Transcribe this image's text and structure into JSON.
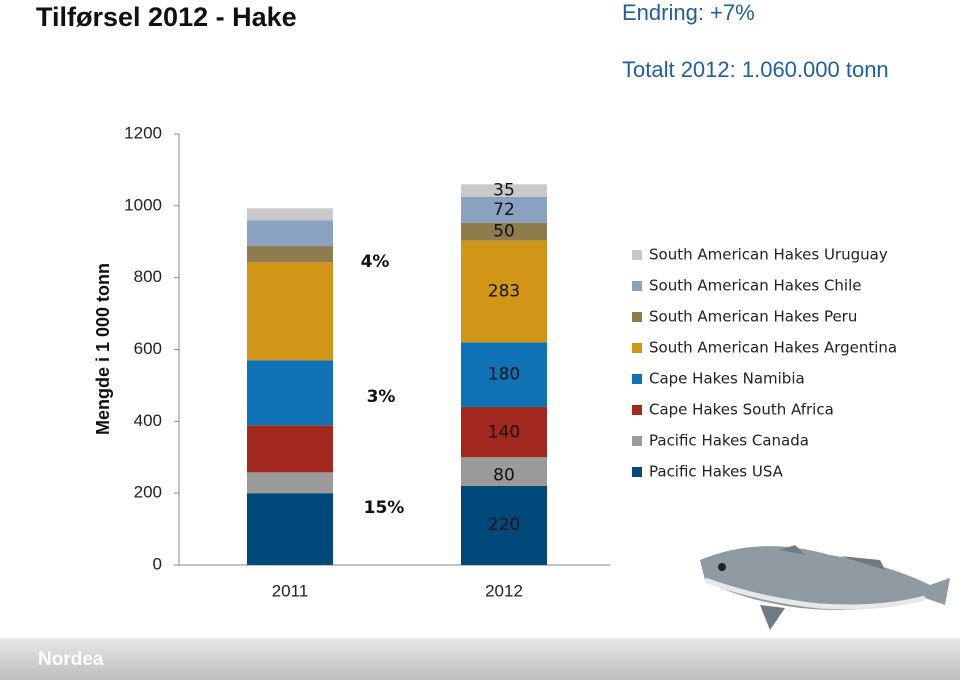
{
  "chart_data": {
    "type": "stacked_bar",
    "title": "Tilførsel 2012 - Hake",
    "subtitle": "Endring: +7%",
    "total_note": "Totalt 2012: 1.060.000 tonn",
    "y_label": "Mengde i 1 000 tonn",
    "categories": [
      "2011",
      "2012"
    ],
    "series": [
      {
        "name": "Pacific Hakes USA",
        "color": "#00497a",
        "values": [
          200,
          220
        ],
        "value_labels": [
          null,
          "220"
        ]
      },
      {
        "name": "Pacific Hakes Canada",
        "color": "#9a9a9a",
        "values": [
          58,
          80
        ],
        "value_labels": [
          null,
          "80"
        ]
      },
      {
        "name": "Cape Hakes South Africa",
        "color": "#a3291f",
        "values": [
          131,
          140
        ],
        "value_labels": [
          null,
          "140"
        ]
      },
      {
        "name": "Cape Hakes Namibia",
        "color": "#0f72b4",
        "values": [
          181,
          180
        ],
        "value_labels": [
          null,
          "180"
        ]
      },
      {
        "name": "South American Hakes Argentina",
        "color": "#d19617",
        "values": [
          273,
          283
        ],
        "value_labels": [
          null,
          "283"
        ]
      },
      {
        "name": "South American Hakes Peru",
        "color": "#8e7c4e",
        "values": [
          45,
          50
        ],
        "value_labels": [
          null,
          "50"
        ]
      },
      {
        "name": "South American Hakes Chile",
        "color": "#8aa1bf",
        "values": [
          72,
          72
        ],
        "value_labels": [
          null,
          "72"
        ]
      },
      {
        "name": "South American Hakes Uruguay",
        "color": "#c9c9c9",
        "values": [
          33,
          35
        ],
        "value_labels": [
          null,
          "35"
        ]
      }
    ],
    "annotations": [
      "4%",
      "3%",
      "15%"
    ],
    "ylim": [
      0,
      1200
    ],
    "yticks": [
      0,
      200,
      400,
      600,
      800,
      1000,
      1200
    ],
    "grid": false,
    "legend": "right"
  },
  "brand": "Nordea"
}
